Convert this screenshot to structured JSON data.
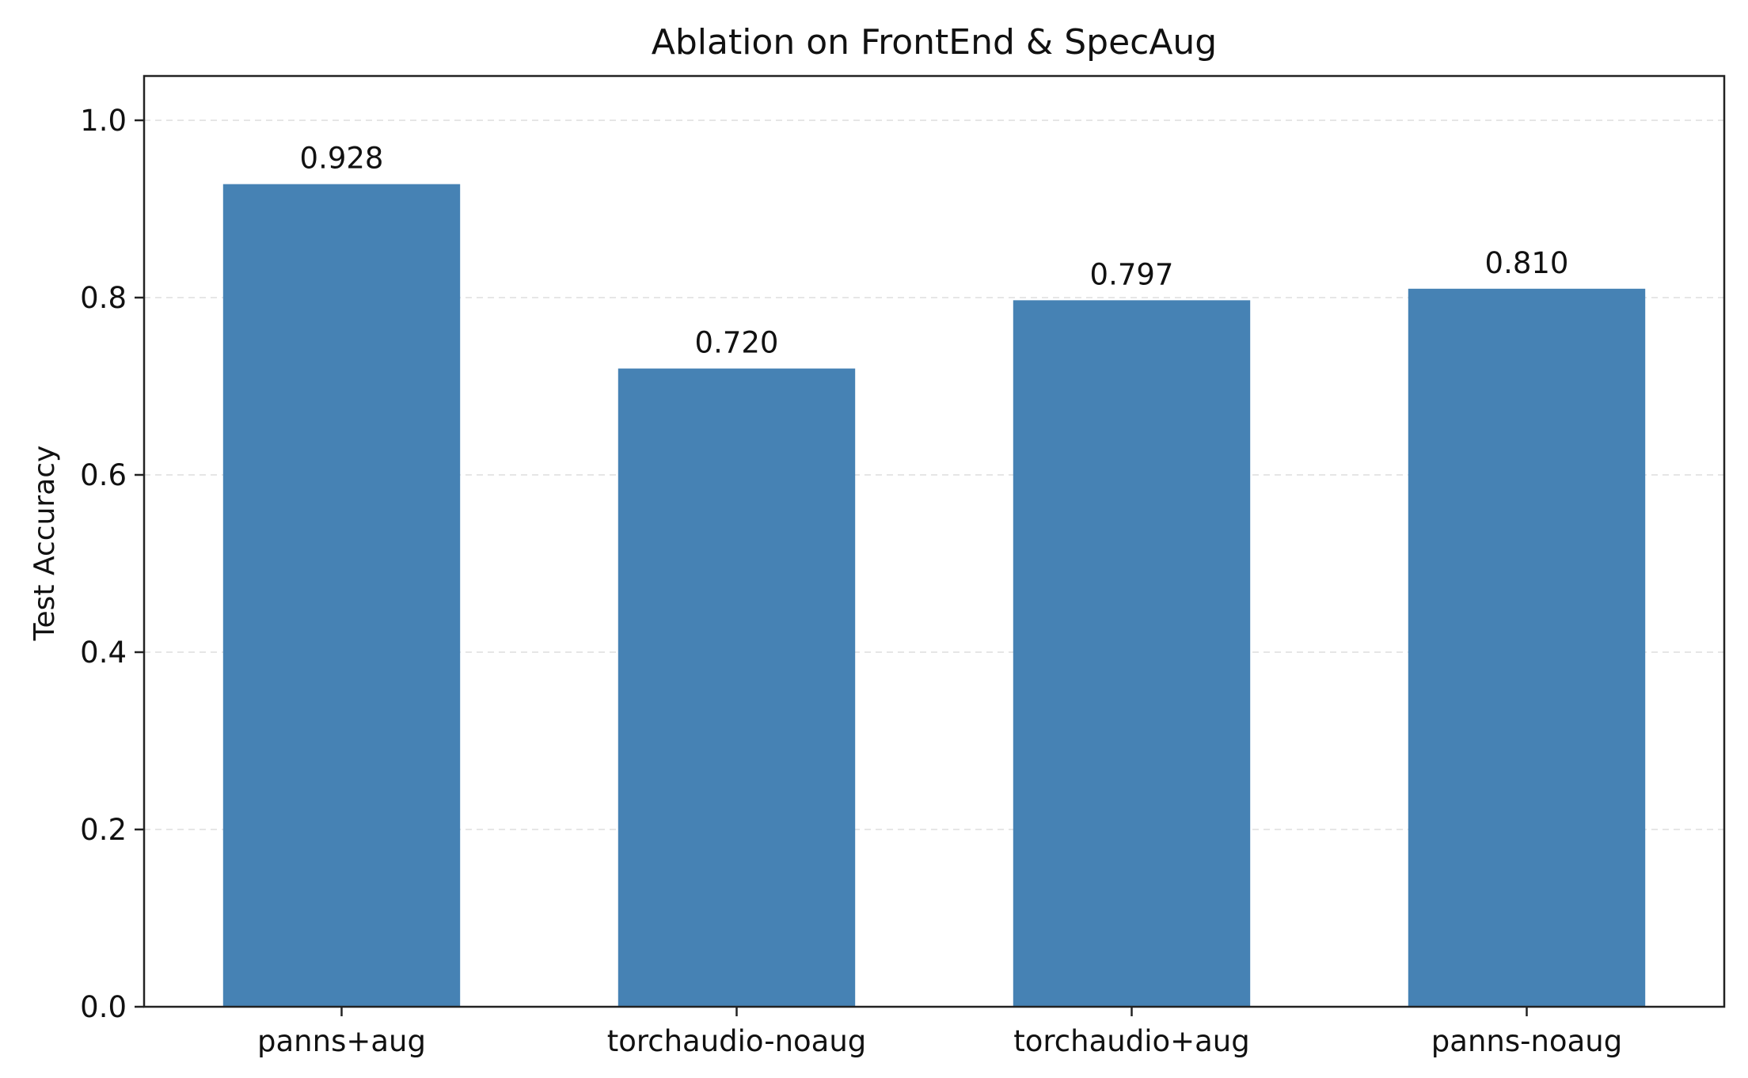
{
  "chart_data": {
    "type": "bar",
    "title": "Ablation on FrontEnd & SpecAug",
    "xlabel": "",
    "ylabel": "Test Accuracy",
    "categories": [
      "panns+aug",
      "torchaudio-noaug",
      "torchaudio+aug",
      "panns-noaug"
    ],
    "values": [
      0.928,
      0.72,
      0.797,
      0.81
    ],
    "value_labels": [
      "0.928",
      "0.720",
      "0.797",
      "0.810"
    ],
    "ylim": [
      0,
      1.05
    ],
    "yticks": [
      0.0,
      0.2,
      0.4,
      0.6,
      0.8,
      1.0
    ],
    "ytick_labels": [
      "0.0",
      "0.2",
      "0.4",
      "0.6",
      "0.8",
      "1.0"
    ],
    "grid": "y-dashed",
    "legend": "none",
    "bar_color": "#4682B4"
  }
}
